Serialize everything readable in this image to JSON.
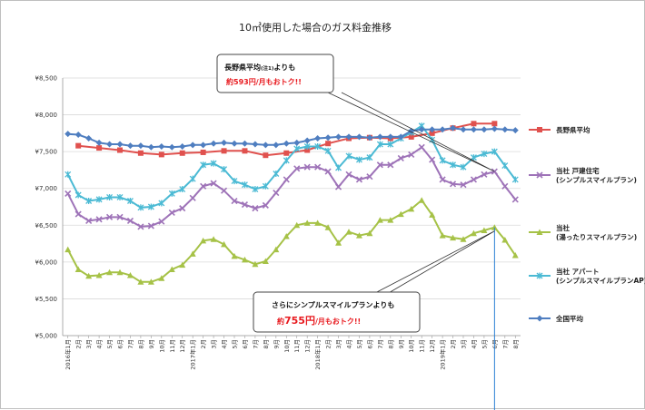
{
  "chart_data": {
    "type": "line",
    "title": "10㎥使用した場合のガス料金推移",
    "y_ticks": [
      "¥8,500",
      "¥8,000",
      "¥7,500",
      "¥7,000",
      "¥6,500",
      "¥6,000",
      "¥5,500",
      "¥5,000"
    ],
    "ylim": [
      5000,
      8500
    ],
    "grid": "horizontal",
    "legend_position": "right",
    "x_labels": [
      "2016年1月",
      "2月",
      "3月",
      "4月",
      "5月",
      "6月",
      "7月",
      "8月",
      "9月",
      "10月",
      "11月",
      "12月",
      "2017年1月",
      "2月",
      "3月",
      "4月",
      "5月",
      "6月",
      "7月",
      "8月",
      "9月",
      "10月",
      "11月",
      "12月",
      "2018年1月",
      "2月",
      "3月",
      "4月",
      "5月",
      "6月",
      "7月",
      "8月",
      "9月",
      "10月",
      "11月",
      "12月",
      "2019年1月",
      "2月",
      "3月",
      "4月",
      "5月",
      "6月",
      "7月",
      "8月"
    ],
    "series": [
      {
        "name": "長野県平均",
        "color": "#e0514e",
        "marker": "square",
        "values": [
          null,
          7580,
          null,
          7550,
          null,
          7520,
          null,
          7480,
          null,
          7460,
          null,
          7480,
          null,
          7490,
          null,
          7510,
          null,
          7510,
          null,
          7450,
          null,
          7480,
          null,
          7520,
          null,
          7610,
          null,
          7680,
          null,
          7690,
          null,
          7680,
          null,
          7700,
          null,
          7750,
          null,
          7820,
          null,
          7880,
          null,
          7880,
          null,
          null
        ]
      },
      {
        "name": "当社 戸建住宅\n(シンプルスマイルプラン)",
        "color": "#9e73b8",
        "marker": "x",
        "values": [
          6930,
          6650,
          6560,
          6580,
          6610,
          6610,
          6560,
          6480,
          6490,
          6550,
          6670,
          6730,
          6870,
          7030,
          7070,
          6970,
          6830,
          6780,
          6730,
          6770,
          6940,
          7120,
          7270,
          7290,
          7290,
          7230,
          7020,
          7190,
          7120,
          7160,
          7320,
          7320,
          7410,
          7460,
          7560,
          7390,
          7120,
          7060,
          7050,
          7120,
          7190,
          7230,
          7030,
          6850
        ]
      },
      {
        "name": "当社\n(湯ったりスマイルプラン)",
        "color": "#a6c247",
        "marker": "triangle",
        "values": [
          6170,
          5900,
          5810,
          5820,
          5860,
          5860,
          5820,
          5730,
          5730,
          5780,
          5900,
          5960,
          6110,
          6290,
          6310,
          6240,
          6080,
          6030,
          5970,
          6010,
          6170,
          6350,
          6500,
          6530,
          6530,
          6470,
          6260,
          6410,
          6360,
          6390,
          6570,
          6570,
          6650,
          6720,
          6840,
          6640,
          6360,
          6330,
          6310,
          6390,
          6430,
          6470,
          6300,
          6090
        ]
      },
      {
        "name": "当社 アパート\n(シンプルスマイルプランAP)",
        "color": "#4bbad4",
        "marker": "asterisk",
        "values": [
          7190,
          6910,
          6830,
          6850,
          6880,
          6880,
          6830,
          6740,
          6750,
          6800,
          6930,
          6990,
          7130,
          7320,
          7340,
          7260,
          7100,
          7050,
          6990,
          7030,
          7200,
          7380,
          7540,
          7570,
          7570,
          7510,
          7280,
          7440,
          7390,
          7420,
          7600,
          7600,
          7680,
          7760,
          7850,
          7660,
          7380,
          7320,
          7290,
          7420,
          7470,
          7500,
          7310,
          7120
        ]
      },
      {
        "name": "全国平均",
        "color": "#4f7ec0",
        "marker": "diamond",
        "values": [
          7740,
          7730,
          7680,
          7620,
          7600,
          7600,
          7580,
          7580,
          7560,
          7570,
          7560,
          7570,
          7590,
          7590,
          7610,
          7620,
          7610,
          7610,
          7600,
          7590,
          7590,
          7610,
          7620,
          7650,
          7680,
          7690,
          7700,
          7700,
          7700,
          7690,
          7700,
          7700,
          7700,
          7780,
          7800,
          7800,
          7800,
          7820,
          7800,
          7800,
          7800,
          7810,
          7800,
          7790
        ]
      }
    ],
    "annotations": [
      {
        "line1": "長野県平均",
        "note": "(注1)",
        "line1b": "よりも",
        "pre": "約",
        "amount": "593円",
        "post": "/月もおトク!!"
      },
      {
        "line1": "さらにシンプルスマイルプランよりも",
        "pre": "約",
        "amount": "755円",
        "post": "/月もおトク!!"
      }
    ]
  }
}
